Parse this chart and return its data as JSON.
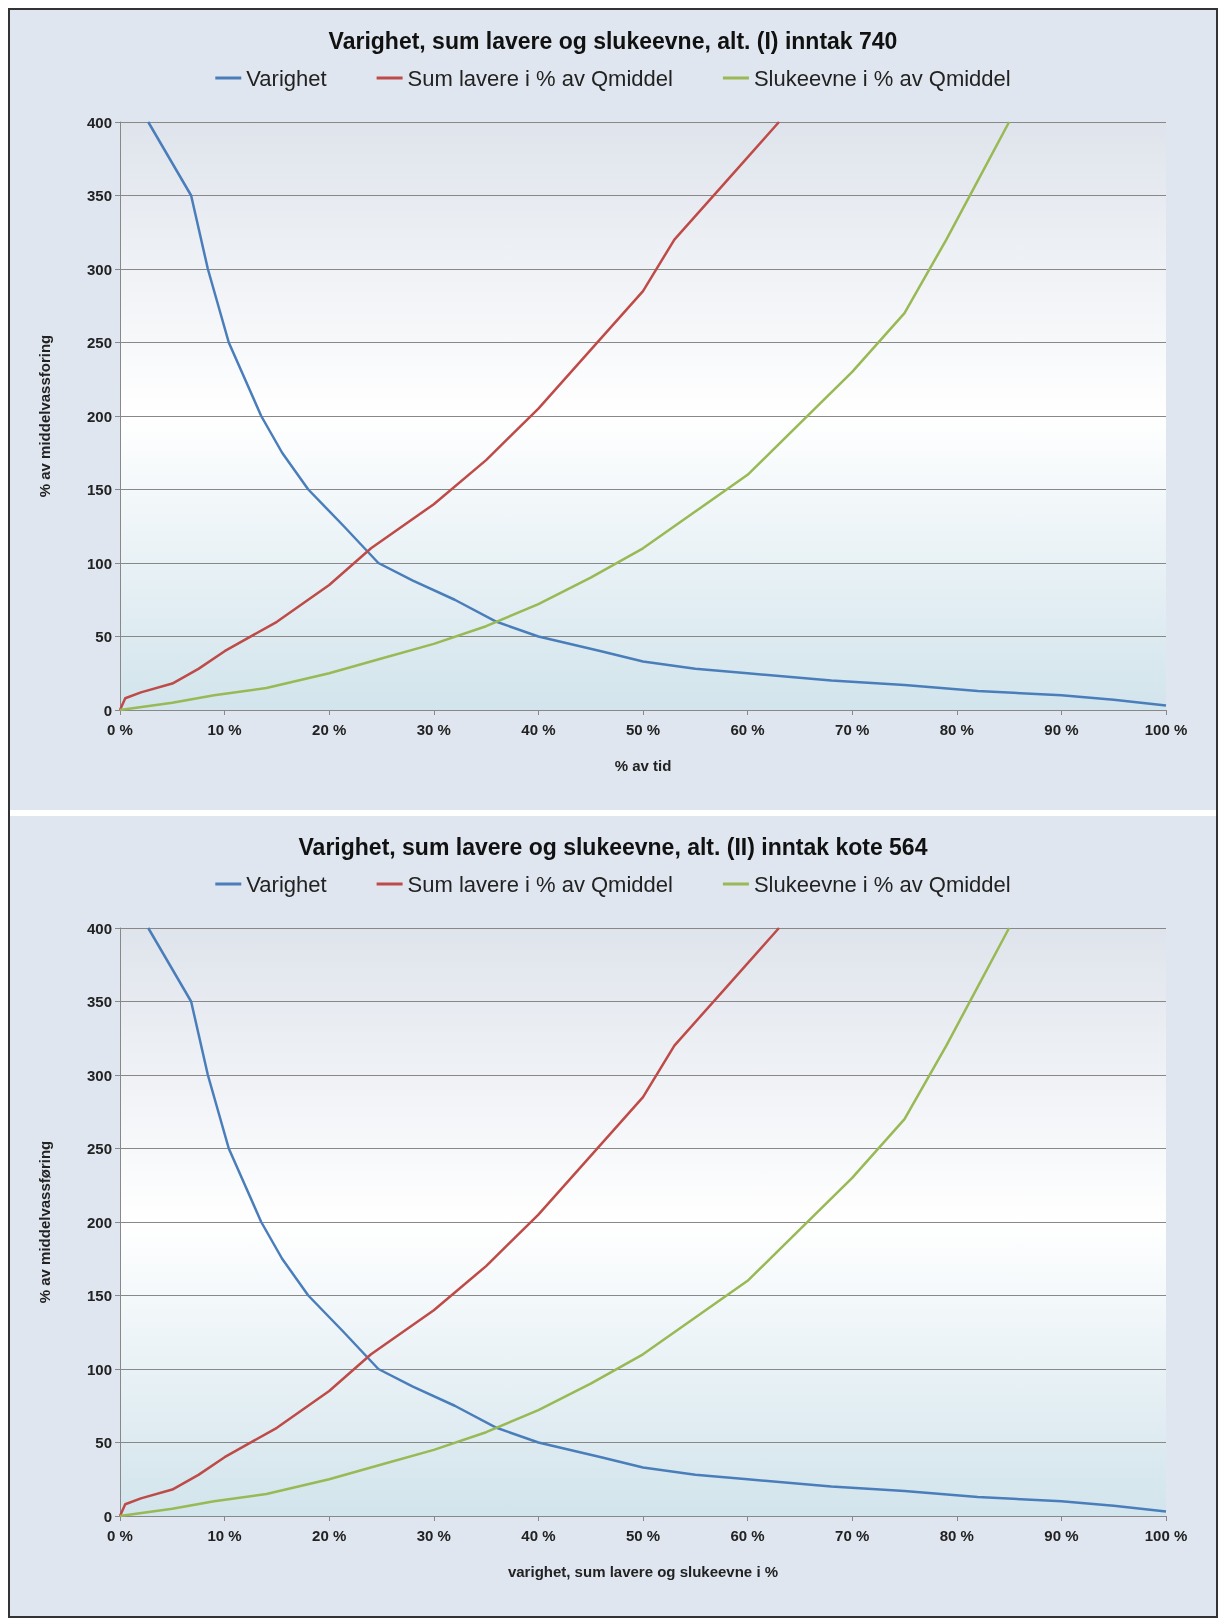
{
  "chart_data": [
    {
      "type": "line",
      "title": "Varighet, sum lavere og slukeevne, alt. (I) inntak 740",
      "xlabel": "% av tid",
      "ylabel": "% av middelvassforing",
      "xlim": [
        0,
        100
      ],
      "ylim": [
        0,
        400
      ],
      "xticks": [
        {
          "value": 0,
          "label": "0 %"
        },
        {
          "value": 10,
          "label": "10 %"
        },
        {
          "value": 20,
          "label": "20 %"
        },
        {
          "value": 30,
          "label": "30 %"
        },
        {
          "value": 40,
          "label": "40 %"
        },
        {
          "value": 50,
          "label": "50 %"
        },
        {
          "value": 60,
          "label": "60 %"
        },
        {
          "value": 70,
          "label": "70 %"
        },
        {
          "value": 80,
          "label": "80 %"
        },
        {
          "value": 90,
          "label": "90 %"
        },
        {
          "value": 100,
          "label": "100 %"
        }
      ],
      "yticks": [
        0,
        50,
        100,
        150,
        200,
        250,
        300,
        350,
        400
      ],
      "grid": "y",
      "legend": "top",
      "marker": "none",
      "series": [
        {
          "name": "Varighet",
          "color": "#4a7ebb",
          "x": [
            2.7,
            6.8,
            8.4,
            10.4,
            13.5,
            15.5,
            18,
            21.4,
            24.7,
            28,
            32,
            36,
            40,
            46,
            50,
            55,
            60,
            68,
            75,
            82,
            90,
            95,
            100
          ],
          "values": [
            400,
            350,
            300,
            250,
            200,
            175,
            150,
            125,
            100,
            88,
            75,
            60,
            50,
            40,
            33,
            28,
            25,
            20,
            17,
            13,
            10,
            7,
            3
          ]
        },
        {
          "name": "Sum lavere i % av Qmiddel",
          "color": "#be4b48",
          "x": [
            0,
            0.5,
            2,
            5,
            7.5,
            10,
            15,
            20,
            24,
            30,
            35,
            40,
            45,
            50,
            53,
            58,
            63
          ],
          "values": [
            0,
            8,
            12,
            18,
            28,
            40,
            60,
            85,
            110,
            140,
            170,
            205,
            245,
            285,
            320,
            360,
            400
          ]
        },
        {
          "name": "Slukeevne i % av Qmiddel",
          "color": "#98b954",
          "x": [
            0,
            5,
            9,
            14,
            20,
            25,
            30,
            35,
            40,
            45,
            50,
            55,
            60,
            65,
            70,
            75,
            79,
            82,
            85
          ],
          "values": [
            0,
            5,
            10,
            15,
            25,
            35,
            45,
            57,
            72,
            90,
            110,
            135,
            160,
            195,
            230,
            270,
            320,
            360,
            400
          ]
        }
      ]
    },
    {
      "type": "line",
      "title": "Varighet, sum lavere og slukeevne, alt. (II) inntak kote 564",
      "xlabel": "varighet, sum lavere og slukeevne i %",
      "ylabel": "% av middelvassføring",
      "xlim": [
        0,
        100
      ],
      "ylim": [
        0,
        400
      ],
      "xticks": [
        {
          "value": 0,
          "label": "0 %"
        },
        {
          "value": 10,
          "label": "10 %"
        },
        {
          "value": 20,
          "label": "20 %"
        },
        {
          "value": 30,
          "label": "30 %"
        },
        {
          "value": 40,
          "label": "40 %"
        },
        {
          "value": 50,
          "label": "50 %"
        },
        {
          "value": 60,
          "label": "60 %"
        },
        {
          "value": 70,
          "label": "70 %"
        },
        {
          "value": 80,
          "label": "80 %"
        },
        {
          "value": 90,
          "label": "90 %"
        },
        {
          "value": 100,
          "label": "100 %"
        }
      ],
      "yticks": [
        0,
        50,
        100,
        150,
        200,
        250,
        300,
        350,
        400
      ],
      "grid": "y",
      "legend": "top",
      "marker": "none",
      "series": [
        {
          "name": "Varighet",
          "color": "#4a7ebb",
          "x": [
            2.7,
            6.8,
            8.4,
            10.4,
            13.5,
            15.5,
            18,
            21.4,
            24.7,
            28,
            32,
            36,
            40,
            46,
            50,
            55,
            60,
            68,
            75,
            82,
            90,
            95,
            100
          ],
          "values": [
            400,
            350,
            300,
            250,
            200,
            175,
            150,
            125,
            100,
            88,
            75,
            60,
            50,
            40,
            33,
            28,
            25,
            20,
            17,
            13,
            10,
            7,
            3
          ]
        },
        {
          "name": "Sum lavere i % av Qmiddel",
          "color": "#be4b48",
          "x": [
            0,
            0.5,
            2,
            5,
            7.5,
            10,
            15,
            20,
            24,
            30,
            35,
            40,
            45,
            50,
            53,
            58,
            63
          ],
          "values": [
            0,
            8,
            12,
            18,
            28,
            40,
            60,
            85,
            110,
            140,
            170,
            205,
            245,
            285,
            320,
            360,
            400
          ]
        },
        {
          "name": "Slukeevne i % av Qmiddel",
          "color": "#98b954",
          "x": [
            0,
            5,
            9,
            14,
            20,
            25,
            30,
            35,
            40,
            45,
            50,
            55,
            60,
            65,
            70,
            75,
            79,
            82,
            85
          ],
          "values": [
            0,
            5,
            10,
            15,
            25,
            35,
            45,
            57,
            72,
            90,
            110,
            135,
            160,
            195,
            230,
            270,
            320,
            360,
            400
          ]
        }
      ]
    }
  ]
}
